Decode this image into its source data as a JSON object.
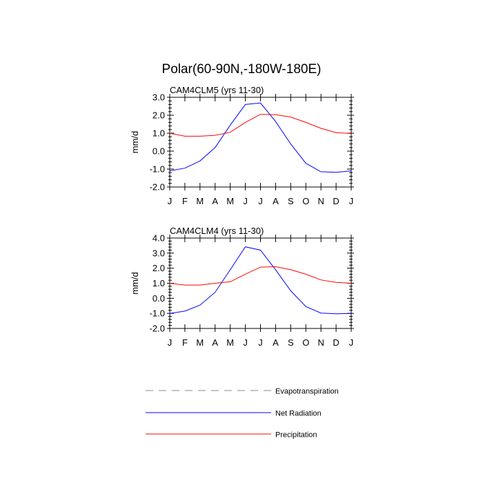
{
  "figure": {
    "title": "Polar(60-90N,-180W-180E)"
  },
  "legend": {
    "placement": "bottom",
    "items": [
      {
        "label": "Evapotranspiration",
        "color": "#888888",
        "dash": true
      },
      {
        "label": "Net Radiation",
        "color": "#0000ff",
        "dash": false
      },
      {
        "label": "Precipitation",
        "color": "#ff0000",
        "dash": false
      }
    ]
  },
  "chart_data": [
    {
      "type": "line",
      "title": "CAM4CLM5 (yrs 11-30)",
      "ylabel": "mm/d",
      "xlabel": "",
      "categories": [
        "J",
        "F",
        "M",
        "A",
        "M",
        "J",
        "J",
        "A",
        "S",
        "O",
        "N",
        "D",
        "J"
      ],
      "ylim": [
        -2.0,
        3.0
      ],
      "yticks": [
        "3.0",
        "2.0",
        "1.0",
        "0.0",
        "-1.0",
        "-2.0"
      ],
      "grid": false,
      "series": [
        {
          "name": "Net Radiation",
          "color": "#0000ff",
          "values": [
            -1.1,
            -0.95,
            -0.55,
            0.2,
            1.45,
            2.6,
            2.68,
            1.65,
            0.4,
            -0.68,
            -1.15,
            -1.18,
            -1.1
          ]
        },
        {
          "name": "Precipitation",
          "color": "#ff0000",
          "values": [
            1.0,
            0.83,
            0.83,
            0.88,
            1.05,
            1.6,
            2.05,
            2.03,
            1.9,
            1.6,
            1.27,
            1.03,
            0.98
          ]
        }
      ]
    },
    {
      "type": "line",
      "title": "CAM4CLM4 (yrs 11-30)",
      "ylabel": "mm/d",
      "xlabel": "",
      "categories": [
        "J",
        "F",
        "M",
        "A",
        "M",
        "J",
        "J",
        "A",
        "S",
        "O",
        "N",
        "D",
        "J"
      ],
      "ylim": [
        -2.0,
        4.0
      ],
      "yticks": [
        "4.0",
        "3.0",
        "2.0",
        "1.0",
        "0.0",
        "-1.0",
        "-2.0"
      ],
      "grid": false,
      "series": [
        {
          "name": "Net Radiation",
          "color": "#0000ff",
          "values": [
            -1.0,
            -0.85,
            -0.45,
            0.4,
            1.9,
            3.42,
            3.2,
            1.9,
            0.5,
            -0.55,
            -0.98,
            -1.03,
            -1.0
          ]
        },
        {
          "name": "Precipitation",
          "color": "#ff0000",
          "values": [
            1.0,
            0.88,
            0.88,
            1.0,
            1.1,
            1.6,
            2.07,
            2.1,
            1.9,
            1.6,
            1.22,
            1.06,
            1.0
          ]
        }
      ]
    }
  ]
}
